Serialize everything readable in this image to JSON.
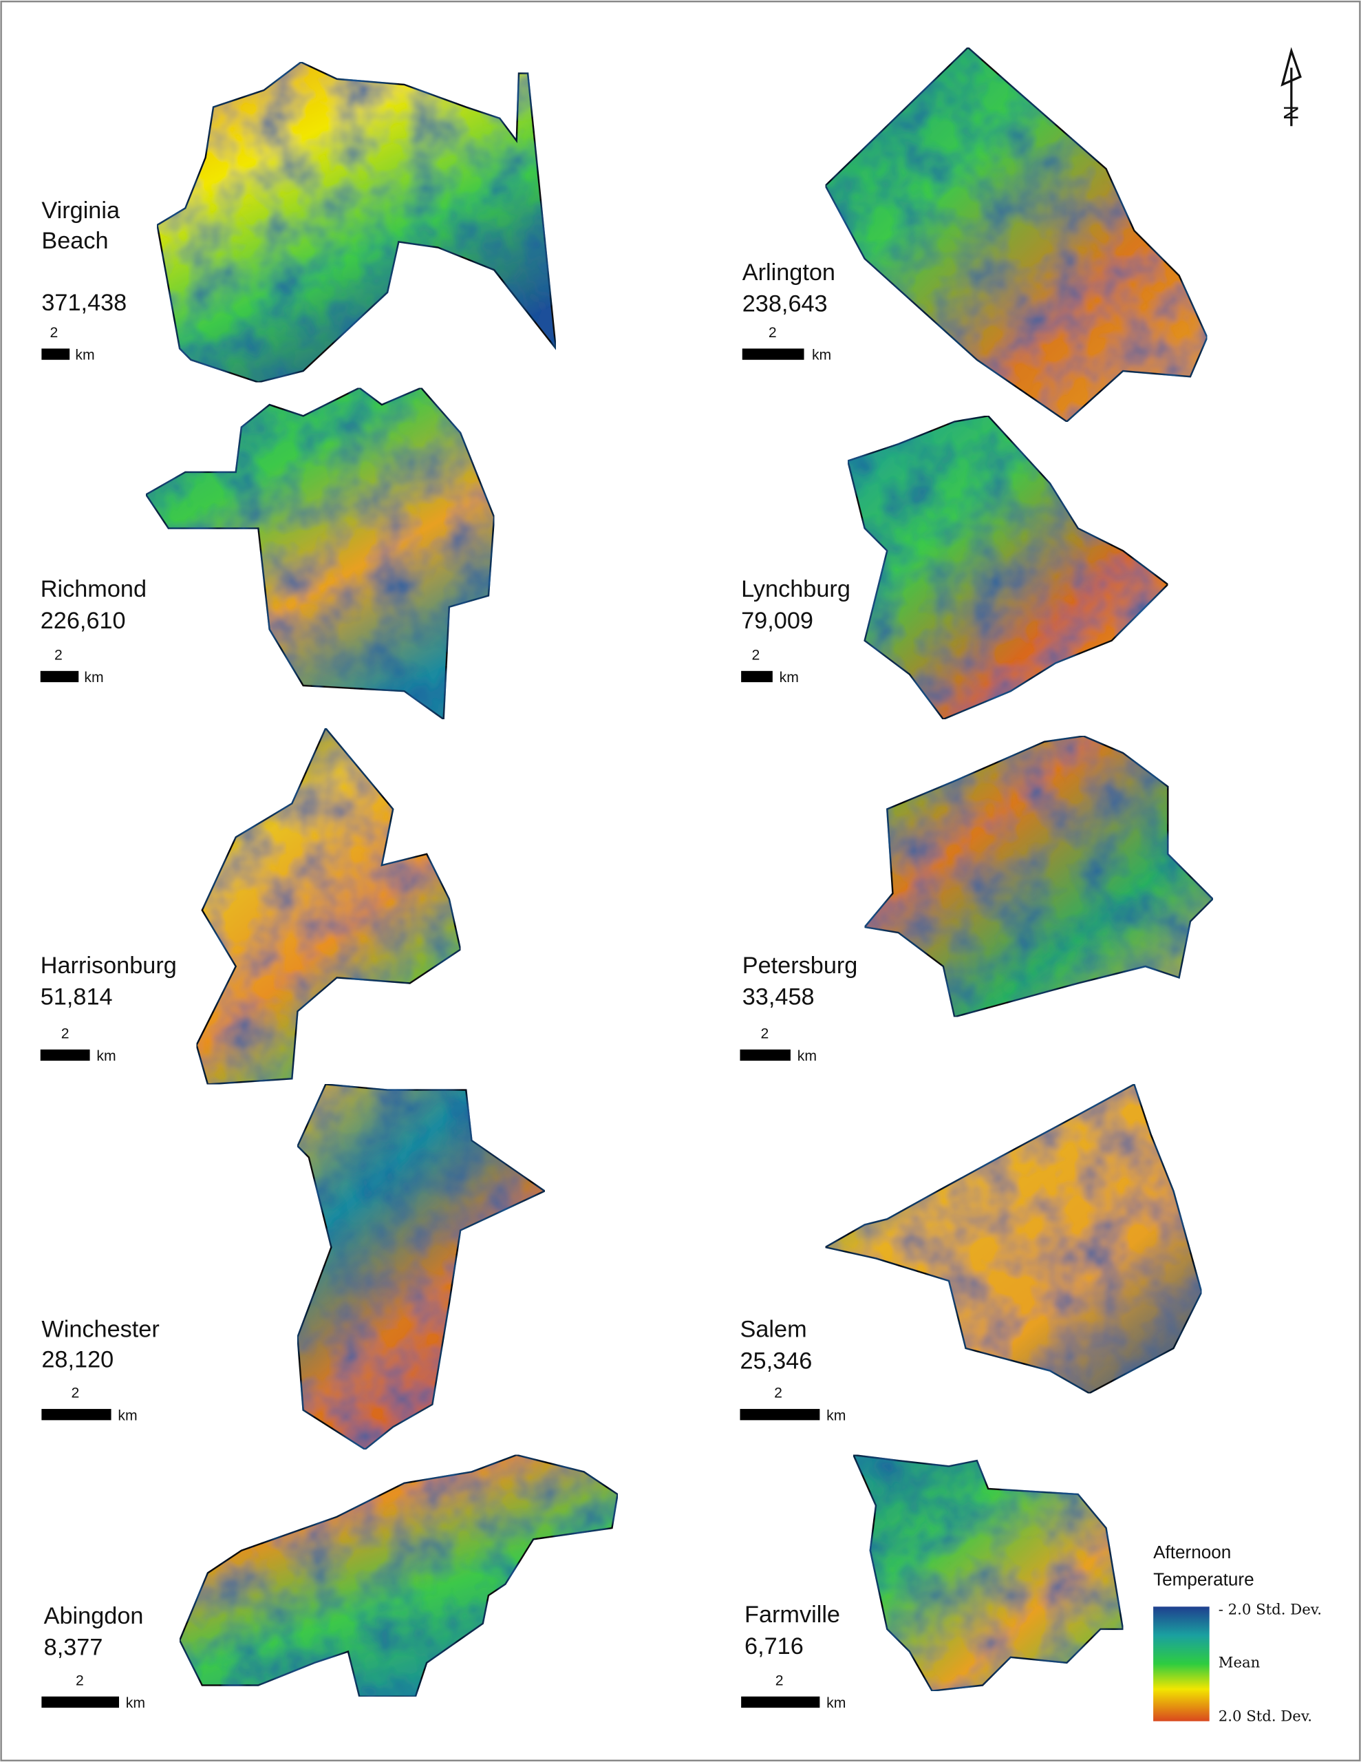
{
  "cities": [
    {
      "name_lines": [
        "Virginia",
        "Beach"
      ],
      "population": "371,438",
      "scale_label": "2",
      "scale_unit": "km"
    },
    {
      "name_lines": [
        "Arlington"
      ],
      "population": "238,643",
      "scale_label": "2",
      "scale_unit": "km"
    },
    {
      "name_lines": [
        "Richmond"
      ],
      "population": "226,610",
      "scale_label": "2",
      "scale_unit": "km"
    },
    {
      "name_lines": [
        "Lynchburg"
      ],
      "population": "79,009",
      "scale_label": "2",
      "scale_unit": "km"
    },
    {
      "name_lines": [
        "Harrisonburg"
      ],
      "population": "51,814",
      "scale_label": "2",
      "scale_unit": "km"
    },
    {
      "name_lines": [
        "Petersburg"
      ],
      "population": "33,458",
      "scale_label": "2",
      "scale_unit": "km"
    },
    {
      "name_lines": [
        "Winchester"
      ],
      "population": "28,120",
      "scale_label": "2",
      "scale_unit": "km"
    },
    {
      "name_lines": [
        "Salem"
      ],
      "population": "25,346",
      "scale_label": "2",
      "scale_unit": "km"
    },
    {
      "name_lines": [
        "Abingdon"
      ],
      "population": "8,377",
      "scale_label": "2",
      "scale_unit": "km"
    },
    {
      "name_lines": [
        "Farmville"
      ],
      "population": "6,716",
      "scale_label": "2",
      "scale_unit": "km"
    }
  ],
  "legend": {
    "title_lines": [
      "Afternoon",
      "Temperature"
    ],
    "labels": [
      "- 2.0 Std. Dev.",
      "Mean",
      "2.0 Std. Dev."
    ]
  },
  "north_label": "N"
}
